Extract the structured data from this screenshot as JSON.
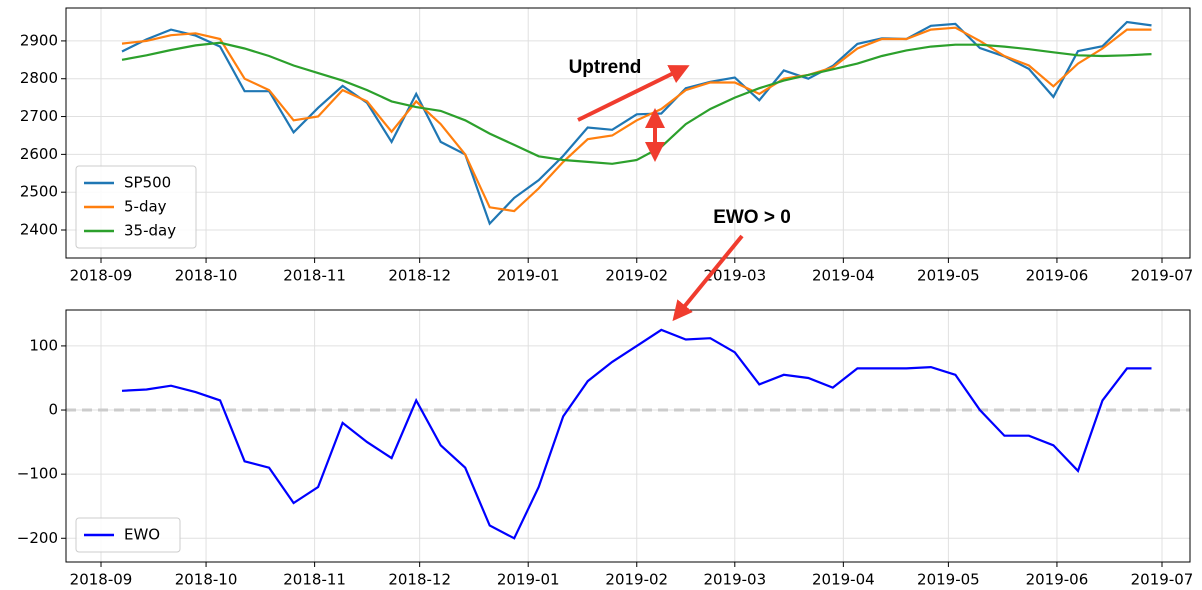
{
  "chart_data": [
    {
      "type": "line",
      "x": [
        "2018-09-07",
        "2018-09-14",
        "2018-09-21",
        "2018-09-28",
        "2018-10-05",
        "2018-10-12",
        "2018-10-19",
        "2018-10-26",
        "2018-11-02",
        "2018-11-09",
        "2018-11-16",
        "2018-11-23",
        "2018-11-30",
        "2018-12-07",
        "2018-12-14",
        "2018-12-21",
        "2018-12-28",
        "2019-01-04",
        "2019-01-11",
        "2019-01-18",
        "2019-01-25",
        "2019-02-01",
        "2019-02-08",
        "2019-02-15",
        "2019-02-22",
        "2019-03-01",
        "2019-03-08",
        "2019-03-15",
        "2019-03-22",
        "2019-03-29",
        "2019-04-05",
        "2019-04-12",
        "2019-04-19",
        "2019-04-26",
        "2019-05-03",
        "2019-05-10",
        "2019-05-17",
        "2019-05-24",
        "2019-05-31",
        "2019-06-07",
        "2019-06-14",
        "2019-06-21",
        "2019-06-28"
      ],
      "series": [
        {
          "name": "SP500",
          "color": "#1f77b4",
          "values": [
            2872,
            2904,
            2930,
            2914,
            2885,
            2767,
            2767,
            2658,
            2723,
            2781,
            2736,
            2633,
            2760,
            2633,
            2600,
            2417,
            2485,
            2532,
            2596,
            2671,
            2665,
            2706,
            2708,
            2775,
            2792,
            2803,
            2743,
            2822,
            2800,
            2834,
            2892,
            2907,
            2905,
            2940,
            2945,
            2881,
            2859,
            2826,
            2752,
            2873,
            2886,
            2950,
            2941
          ]
        },
        {
          "name": "5-day",
          "color": "#ff7f0e",
          "values": [
            2893,
            2900,
            2915,
            2920,
            2905,
            2800,
            2770,
            2690,
            2700,
            2770,
            2740,
            2660,
            2740,
            2680,
            2600,
            2460,
            2450,
            2510,
            2580,
            2640,
            2650,
            2690,
            2720,
            2770,
            2790,
            2790,
            2760,
            2800,
            2810,
            2830,
            2880,
            2905,
            2905,
            2930,
            2935,
            2900,
            2860,
            2835,
            2780,
            2840,
            2880,
            2930,
            2930
          ]
        },
        {
          "name": "35-day",
          "color": "#2ca02c",
          "values": [
            2850,
            2862,
            2876,
            2888,
            2895,
            2880,
            2860,
            2835,
            2815,
            2795,
            2770,
            2740,
            2725,
            2715,
            2690,
            2655,
            2625,
            2595,
            2585,
            2580,
            2575,
            2585,
            2620,
            2680,
            2720,
            2750,
            2775,
            2795,
            2810,
            2825,
            2840,
            2860,
            2875,
            2885,
            2890,
            2890,
            2885,
            2878,
            2870,
            2862,
            2860,
            2862,
            2865
          ]
        }
      ],
      "xlim": [
        "2018-08-22",
        "2019-07-09"
      ],
      "xticks": [
        "2018-09",
        "2018-10",
        "2018-11",
        "2018-12",
        "2019-01",
        "2019-02",
        "2019-03",
        "2019-04",
        "2019-05",
        "2019-06",
        "2019-07"
      ],
      "ylim": [
        2326,
        2987
      ],
      "yticks": [
        2400,
        2500,
        2600,
        2700,
        2800,
        2900
      ],
      "grid": true,
      "legend": "lower left",
      "annotations": [
        {
          "text": "Uptrend",
          "color": "#f03c2e"
        },
        {
          "text": "EWO > 0",
          "color": "#f03c2e"
        }
      ]
    },
    {
      "type": "line",
      "x": [
        "2018-09-07",
        "2018-09-14",
        "2018-09-21",
        "2018-09-28",
        "2018-10-05",
        "2018-10-12",
        "2018-10-19",
        "2018-10-26",
        "2018-11-02",
        "2018-11-09",
        "2018-11-16",
        "2018-11-23",
        "2018-11-30",
        "2018-12-07",
        "2018-12-14",
        "2018-12-21",
        "2018-12-28",
        "2019-01-04",
        "2019-01-11",
        "2019-01-18",
        "2019-01-25",
        "2019-02-01",
        "2019-02-08",
        "2019-02-15",
        "2019-02-22",
        "2019-03-01",
        "2019-03-08",
        "2019-03-15",
        "2019-03-22",
        "2019-03-29",
        "2019-04-05",
        "2019-04-12",
        "2019-04-19",
        "2019-04-26",
        "2019-05-03",
        "2019-05-10",
        "2019-05-17",
        "2019-05-24",
        "2019-05-31",
        "2019-06-07",
        "2019-06-14",
        "2019-06-21",
        "2019-06-28"
      ],
      "series": [
        {
          "name": "EWO",
          "color": "#0000ff",
          "values": [
            30,
            32,
            38,
            28,
            15,
            -80,
            -90,
            -145,
            -120,
            -20,
            -50,
            -75,
            15,
            -55,
            -90,
            -180,
            -200,
            -120,
            -10,
            45,
            75,
            100,
            125,
            110,
            112,
            90,
            40,
            55,
            50,
            35,
            65,
            65,
            65,
            67,
            55,
            0,
            -40,
            -40,
            -55,
            -95,
            15,
            65,
            65
          ]
        }
      ],
      "xlim": [
        "2018-08-22",
        "2019-07-09"
      ],
      "xticks": [
        "2018-09",
        "2018-10",
        "2018-11",
        "2018-12",
        "2019-01",
        "2019-02",
        "2019-03",
        "2019-04",
        "2019-05",
        "2019-06",
        "2019-07"
      ],
      "ylim": [
        -237,
        156
      ],
      "yticks": [
        -200,
        -100,
        0,
        100
      ],
      "grid": true,
      "legend": "lower left",
      "hline": 0
    }
  ]
}
